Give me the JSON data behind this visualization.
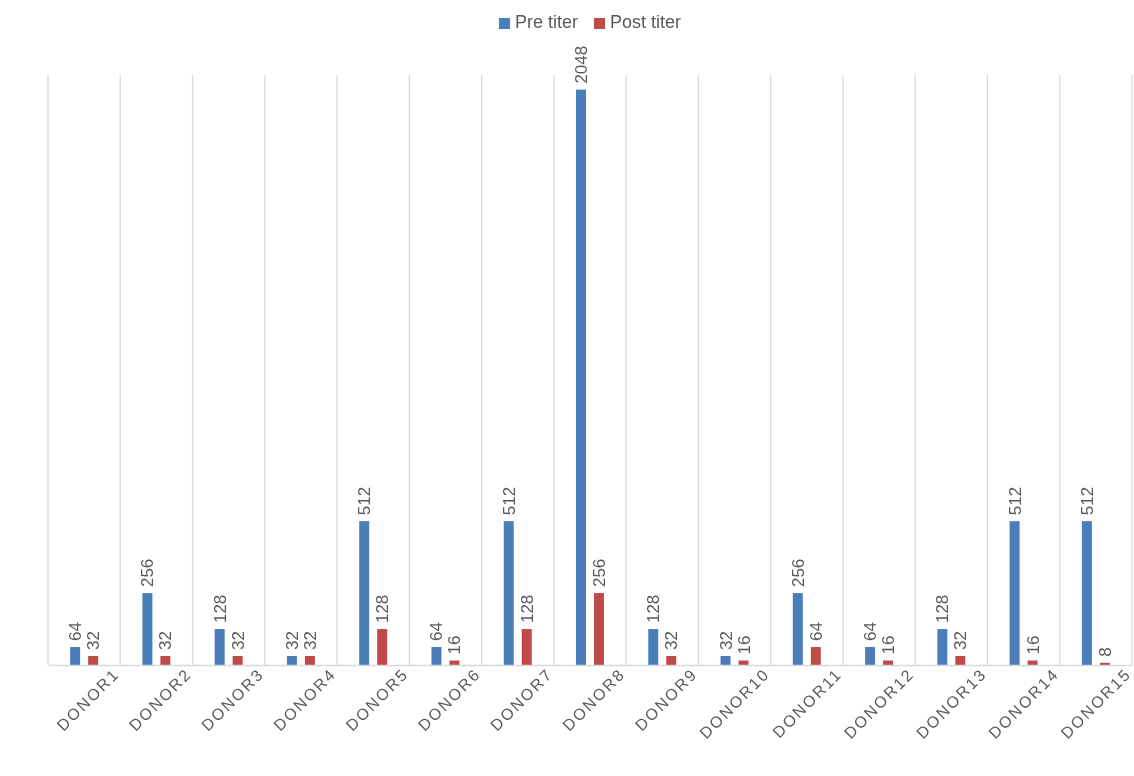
{
  "chart_data": {
    "type": "bar",
    "categories": [
      "DONOR1",
      "DONOR2",
      "DONOR3",
      "DONOR4",
      "DONOR5",
      "DONOR6",
      "DONOR7",
      "DONOR8",
      "DONOR9",
      "DONOR10",
      "DONOR11",
      "DONOR12",
      "DONOR13",
      "DONOR14",
      "DONOR15"
    ],
    "series": [
      {
        "name": "Pre titer",
        "color": "#4a7ebb",
        "values": [
          64,
          256,
          128,
          32,
          512,
          64,
          512,
          2048,
          128,
          32,
          256,
          64,
          128,
          512,
          512
        ]
      },
      {
        "name": "Post titer",
        "color": "#be4b48",
        "values": [
          32,
          32,
          32,
          32,
          128,
          16,
          128,
          256,
          32,
          16,
          64,
          16,
          32,
          16,
          8
        ]
      }
    ],
    "ylim": [
      0,
      2100
    ],
    "tick_labels": "x",
    "data_labels": true,
    "grid": "x",
    "legend": "top"
  }
}
